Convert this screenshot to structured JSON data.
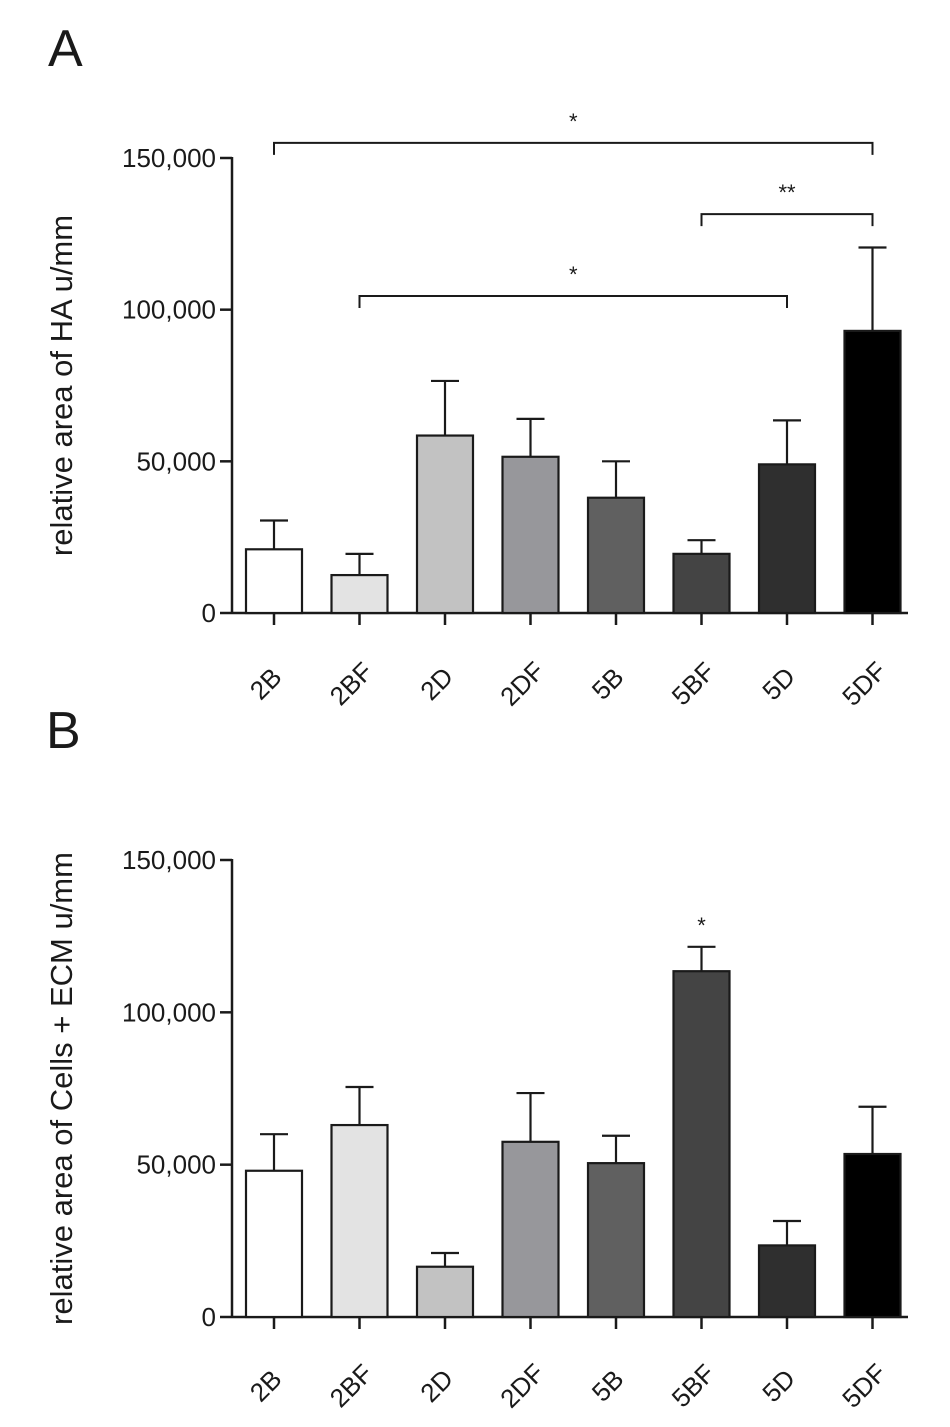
{
  "chart_data": [
    {
      "panel": "A",
      "type": "bar",
      "ylabel": "relative area of HA u/mm",
      "ylim": [
        0,
        150000
      ],
      "yticks": [
        0,
        50000,
        100000,
        150000
      ],
      "ytick_labels": [
        "0",
        "50,000",
        "100,000",
        "150,000"
      ],
      "categories": [
        "2B",
        "2BF",
        "2D",
        "2DF",
        "5B",
        "5BF",
        "5D",
        "5DF"
      ],
      "values": [
        21000,
        12500,
        58500,
        51500,
        38000,
        19500,
        49000,
        93000
      ],
      "errors": [
        9500,
        7000,
        18000,
        12500,
        12000,
        4500,
        14500,
        27500
      ],
      "colors": [
        "#ffffff",
        "#e3e3e3",
        "#c2c2c2",
        "#97979b",
        "#606060",
        "#444444",
        "#2f2f2f",
        "#000000"
      ],
      "significance": [
        {
          "from": "2B",
          "to": "5DF",
          "label": "*",
          "y": 155000
        },
        {
          "from": "5BF",
          "to": "5DF",
          "label": "**",
          "y": 131500
        },
        {
          "from": "2BF",
          "to": "5D",
          "label": "*",
          "y": 104500
        }
      ]
    },
    {
      "panel": "B",
      "type": "bar",
      "ylabel": "relative area of Cells + ECM u/mm",
      "ylim": [
        0,
        150000
      ],
      "yticks": [
        0,
        50000,
        100000,
        150000
      ],
      "ytick_labels": [
        "0",
        "50,000",
        "100,000",
        "150,000"
      ],
      "categories": [
        "2B",
        "2BF",
        "2D",
        "2DF",
        "5B",
        "5BF",
        "5D",
        "5DF"
      ],
      "values": [
        48000,
        63000,
        16500,
        57500,
        50500,
        113500,
        23500,
        53500
      ],
      "errors": [
        12000,
        12500,
        4500,
        16000,
        9000,
        8000,
        8000,
        15500
      ],
      "colors": [
        "#ffffff",
        "#e3e3e3",
        "#c2c2c2",
        "#97979b",
        "#606060",
        "#444444",
        "#2f2f2f",
        "#000000"
      ],
      "annotations": [
        {
          "category": "5BF",
          "label": "*"
        }
      ]
    }
  ]
}
